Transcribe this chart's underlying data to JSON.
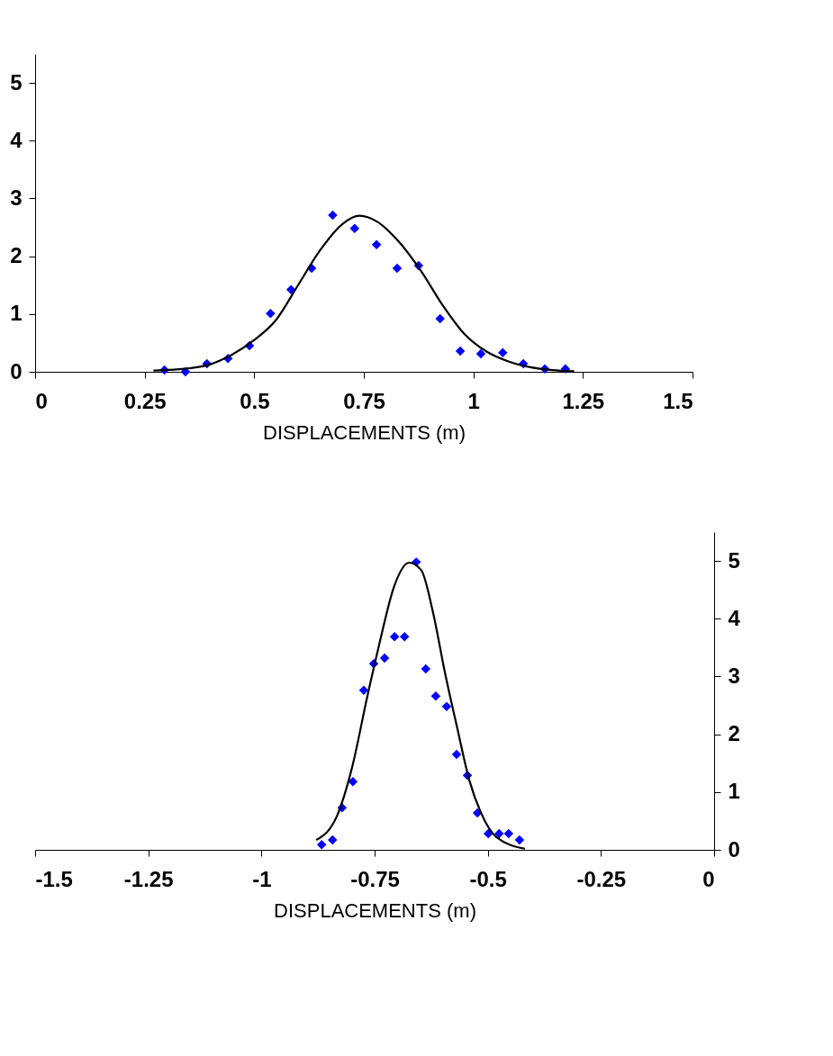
{
  "chart_data": [
    {
      "type": "scatter",
      "xlabel": "DISPLACEMENTS (m)",
      "xlim": [
        0,
        1.5
      ],
      "xticks": [
        0,
        0.25,
        0.5,
        0.75,
        1,
        1.25,
        1.5
      ],
      "ylim": [
        0,
        5.5
      ],
      "yticks": [
        0,
        1,
        2,
        3,
        4,
        5
      ],
      "grid": false,
      "series": [
        {
          "marker": "diamond",
          "color": "#0000ff",
          "x": [
            0.295,
            0.343,
            0.392,
            0.44,
            0.489,
            0.537,
            0.584,
            0.631,
            0.679,
            0.729,
            0.779,
            0.826,
            0.875,
            0.924,
            0.97,
            1.017,
            1.067,
            1.114,
            1.163,
            1.21
          ],
          "values": [
            0.03,
            0,
            0.14,
            0.23,
            0.45,
            1.01,
            1.42,
            1.79,
            2.71,
            2.48,
            2.2,
            1.79,
            1.84,
            0.92,
            0.36,
            0.31,
            0.33,
            0.14,
            0.05,
            0.05
          ]
        },
        {
          "type": "line",
          "marker": "none",
          "color": "#000000",
          "line_style": "solid",
          "x": [
            0.27,
            0.35,
            0.4,
            0.45,
            0.5,
            0.55,
            0.6,
            0.65,
            0.7,
            0.74,
            0.78,
            0.83,
            0.88,
            0.93,
            0.98,
            1.03,
            1.08,
            1.13,
            1.18,
            1.23
          ],
          "values": [
            0.02,
            0.06,
            0.13,
            0.3,
            0.55,
            0.9,
            1.5,
            2.1,
            2.55,
            2.7,
            2.6,
            2.25,
            1.75,
            1.15,
            0.65,
            0.35,
            0.18,
            0.08,
            0.03,
            0.01
          ]
        }
      ]
    },
    {
      "type": "scatter",
      "xlabel": "DISPLACEMENTS (m)",
      "xlim": [
        -1.5,
        0
      ],
      "xticks": [
        -1.5,
        -1.25,
        -1,
        -0.75,
        -0.5,
        -0.25,
        0
      ],
      "ylim": [
        0,
        5.5
      ],
      "yticks": [
        0,
        1,
        2,
        3,
        4,
        5
      ],
      "grid": false,
      "series": [
        {
          "marker": "diamond",
          "color": "#0000ff",
          "x": [
            -0.867,
            -0.843,
            -0.822,
            -0.798,
            -0.774,
            -0.752,
            -0.728,
            -0.706,
            -0.684,
            -0.658,
            -0.637,
            -0.615,
            -0.591,
            -0.569,
            -0.545,
            -0.523,
            -0.499,
            -0.475,
            -0.454,
            -0.43
          ],
          "values": [
            0.09,
            0.17,
            0.73,
            1.18,
            2.76,
            3.22,
            3.32,
            3.69,
            3.69,
            4.98,
            3.13,
            2.66,
            2.48,
            1.65,
            1.29,
            0.64,
            0.28,
            0.28,
            0.28,
            0.17
          ]
        },
        {
          "type": "line",
          "marker": "none",
          "color": "#000000",
          "line_style": "solid",
          "x": [
            -0.879,
            -0.833,
            -0.8,
            -0.766,
            -0.74,
            -0.706,
            -0.674,
            -0.647,
            -0.621,
            -0.595,
            -0.567,
            -0.541,
            -0.515,
            -0.481,
            -0.418
          ],
          "values": [
            0.17,
            0.59,
            1.42,
            2.66,
            3.55,
            4.58,
            4.97,
            4.84,
            4.11,
            3.08,
            2.09,
            1.21,
            0.64,
            0.22,
            0.02
          ]
        }
      ]
    }
  ]
}
